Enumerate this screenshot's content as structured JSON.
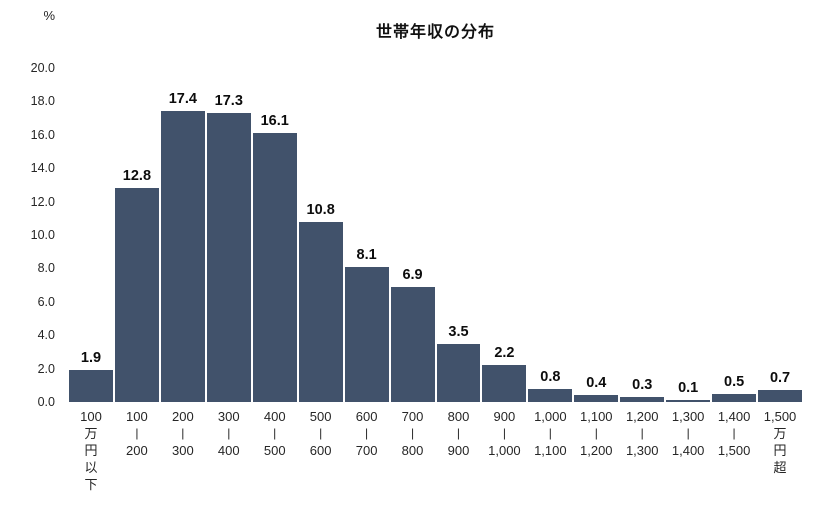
{
  "header": {
    "title": "世帯年収の分布",
    "y_unit_label": "%"
  },
  "chart_data": {
    "type": "bar",
    "title": "世帯年収の分布",
    "ylabel": "%",
    "xlabel": "",
    "ylim": [
      0,
      20
    ],
    "ytick_interval": 2,
    "ytick_labels": [
      "20.0",
      "18.0",
      "16.0",
      "14.0",
      "12.0",
      "10.0",
      "8.0",
      "6.0",
      "4.0",
      "2.0",
      "0.0"
    ],
    "grid": false,
    "legend": false,
    "bar_color": "#41526B",
    "categories": [
      "100万円以下",
      "100-200",
      "200-300",
      "300-400",
      "400-500",
      "500-600",
      "600-700",
      "700-800",
      "800-900",
      "900-1,000",
      "1,000-1,100",
      "1,100-1,200",
      "1,200-1,300",
      "1,300-1,400",
      "1,400-1,500",
      "1,500万円超"
    ],
    "category_label_lines": [
      [
        "100",
        "万",
        "円",
        "以",
        "下"
      ],
      [
        "100",
        "|",
        "200"
      ],
      [
        "200",
        "|",
        "300"
      ],
      [
        "300",
        "|",
        "400"
      ],
      [
        "400",
        "|",
        "500"
      ],
      [
        "500",
        "|",
        "600"
      ],
      [
        "600",
        "|",
        "700"
      ],
      [
        "700",
        "|",
        "800"
      ],
      [
        "800",
        "|",
        "900"
      ],
      [
        "900",
        "|",
        "1,000"
      ],
      [
        "1,000",
        "|",
        "1,100"
      ],
      [
        "1,100",
        "|",
        "1,200"
      ],
      [
        "1,200",
        "|",
        "1,300"
      ],
      [
        "1,300",
        "|",
        "1,400"
      ],
      [
        "1,400",
        "|",
        "1,500"
      ],
      [
        "1,500",
        "万",
        "円",
        "超"
      ]
    ],
    "values": [
      1.9,
      12.8,
      17.4,
      17.3,
      16.1,
      10.8,
      8.1,
      6.9,
      3.5,
      2.2,
      0.8,
      0.4,
      0.3,
      0.1,
      0.5,
      0.7
    ],
    "value_labels": [
      "1.9",
      "12.8",
      "17.4",
      "17.3",
      "16.1",
      "10.8",
      "8.1",
      "6.9",
      "3.5",
      "2.2",
      "0.8",
      "0.4",
      "0.3",
      "0.1",
      "0.5",
      "0.7"
    ]
  }
}
